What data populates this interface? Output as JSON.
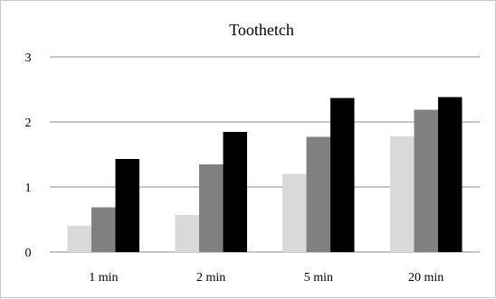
{
  "chart_data": {
    "type": "bar",
    "title": "Toothetch",
    "xlabel": "",
    "ylabel": "",
    "categories": [
      "1 min",
      "2 min",
      "5 min",
      "20 min"
    ],
    "series": [
      {
        "values": [
          0.4,
          0.57,
          1.2,
          1.78
        ]
      },
      {
        "values": [
          0.69,
          1.35,
          1.77,
          2.19
        ]
      },
      {
        "values": [
          1.43,
          1.85,
          2.37,
          2.38
        ]
      }
    ],
    "colors": [
      "#d9d9d9",
      "#808080",
      "#000000"
    ],
    "ylim": [
      0,
      3
    ],
    "yticks": [
      "0",
      "1",
      "2",
      "3"
    ],
    "grid": true,
    "legend": "none"
  }
}
